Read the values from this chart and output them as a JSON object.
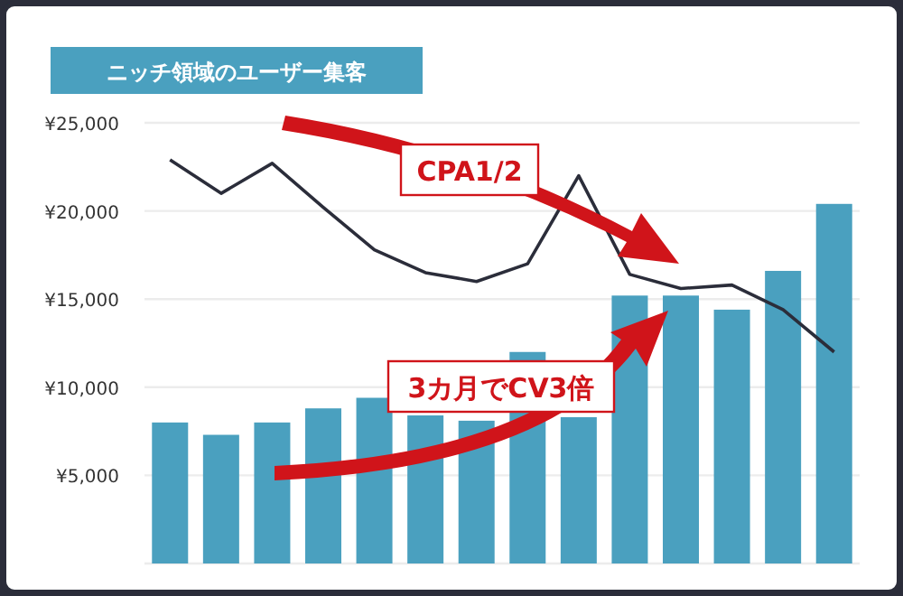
{
  "chart_data": {
    "type": "bar",
    "title": "ニッチ領域のユーザー集客",
    "categories": [
      null,
      null,
      null,
      null,
      null,
      null,
      null,
      null,
      null,
      null,
      null,
      null,
      null,
      null
    ],
    "series": [
      {
        "color": "#4aa0bf",
        "values": [
          8000,
          7300,
          8000,
          8800,
          9400,
          8400,
          8100,
          12000,
          8300,
          15200,
          15200,
          14400,
          16600,
          20400
        ]
      },
      {
        "type": "line",
        "color": "#2b2d3a",
        "values": [
          22900,
          21000,
          22700,
          20200,
          17800,
          16500,
          16000,
          17000,
          22000,
          16400,
          15600,
          15800,
          14400,
          12000
        ]
      }
    ],
    "ylim": [
      0,
      25000
    ],
    "yticks": [
      {
        "value": 0,
        "label": null
      },
      {
        "value": 5000,
        "label": "¥5,000"
      },
      {
        "value": 10000,
        "label": "¥10,000"
      },
      {
        "value": 15000,
        "label": "¥15,000"
      },
      {
        "value": 20000,
        "label": "¥20,000"
      },
      {
        "value": 25000,
        "label": "¥25,000"
      }
    ],
    "grid": "y",
    "marker": "none",
    "line_style": "solid",
    "annotations": [
      "CPA1/2",
      "3カ月でCV3倍"
    ]
  }
}
